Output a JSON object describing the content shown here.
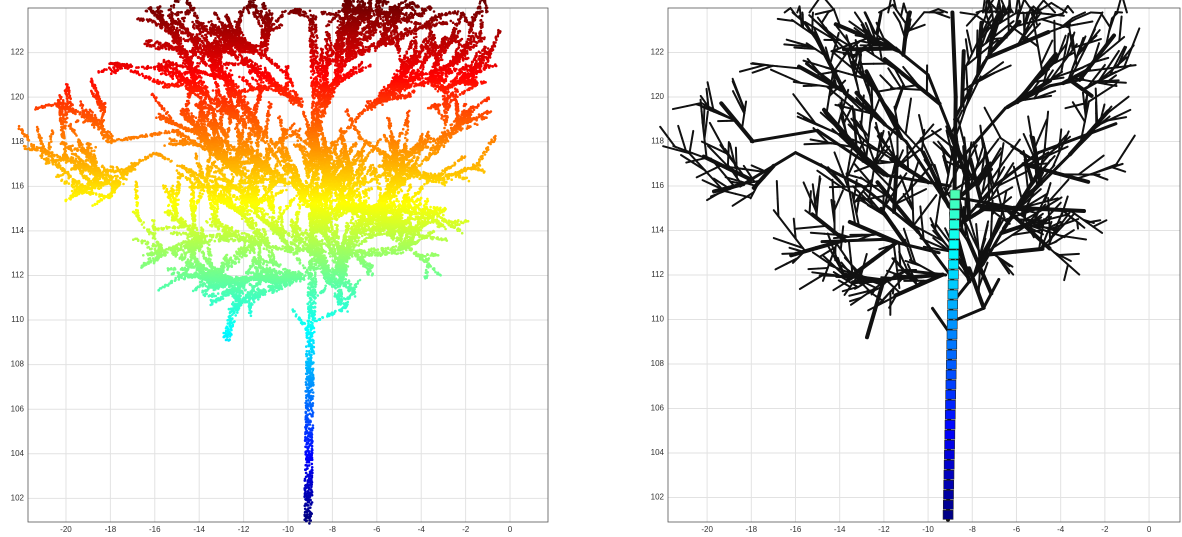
{
  "panels": [
    {
      "xticks": [
        -20,
        -18,
        -16,
        -14,
        -12,
        -10,
        -8,
        -6,
        -4,
        -2,
        0
      ],
      "yticks": [
        102,
        104,
        106,
        108,
        110,
        112,
        114,
        116,
        118,
        120,
        122
      ]
    },
    {
      "xticks": [
        -20,
        -18,
        -16,
        -14,
        -12,
        -10,
        -8,
        -6,
        -4,
        -2,
        0
      ],
      "yticks": [
        102,
        104,
        106,
        108,
        110,
        112,
        114,
        116,
        118,
        120,
        122
      ]
    }
  ]
}
